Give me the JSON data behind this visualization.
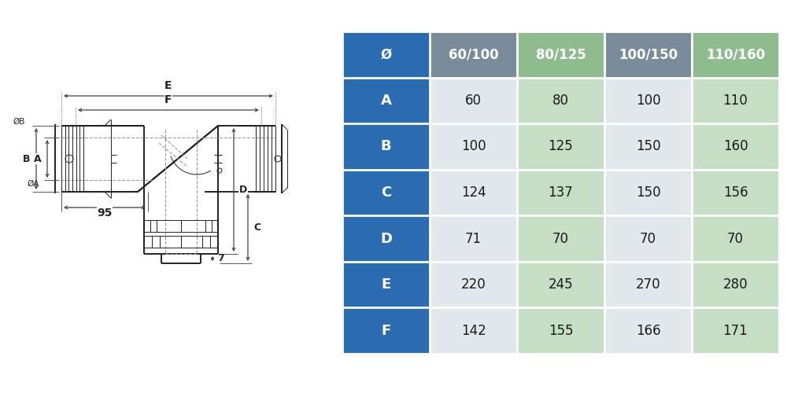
{
  "table": {
    "col_headers": [
      "Ø",
      "60/100",
      "80/125",
      "100/150",
      "110/160"
    ],
    "row_labels": [
      "A",
      "B",
      "C",
      "D",
      "E",
      "F"
    ],
    "values": [
      [
        60,
        80,
        100,
        110
      ],
      [
        100,
        125,
        150,
        160
      ],
      [
        124,
        137,
        150,
        156
      ],
      [
        71,
        70,
        70,
        70
      ],
      [
        220,
        245,
        270,
        280
      ],
      [
        142,
        155,
        166,
        171
      ]
    ]
  },
  "colors": {
    "header_blue": "#2B6CB0",
    "header_gray": "#7A8C99",
    "header_green": "#8FBC8F",
    "col1_bg": "#E2E8EC",
    "col2_bg": "#C5DEC5",
    "col3_bg": "#E2E8EC",
    "col4_bg": "#C5DEC5",
    "row_label_bg": "#2B6CB0",
    "cell_text": "#1a1a1a",
    "header_text": "#FFFFFF",
    "white": "#FFFFFF"
  }
}
